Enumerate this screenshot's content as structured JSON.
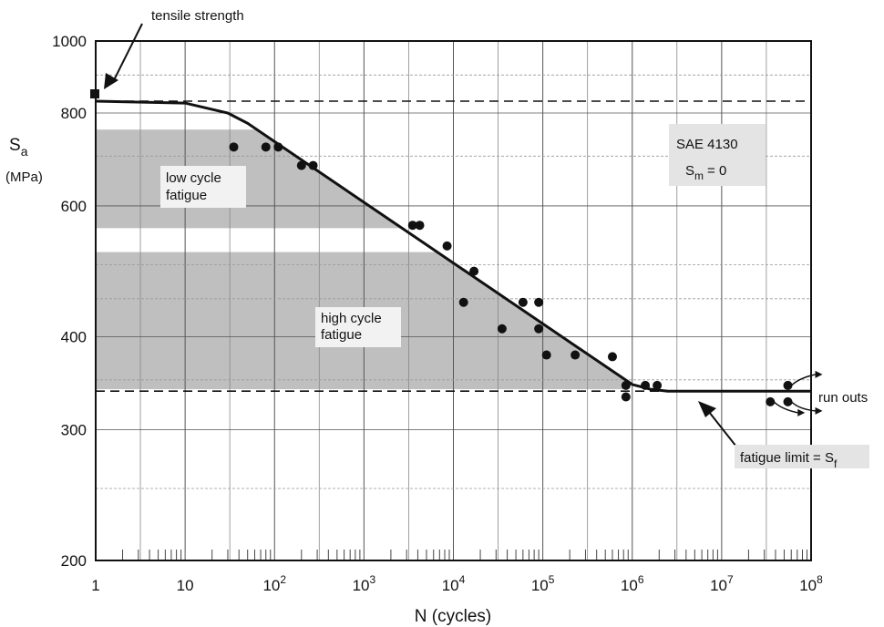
{
  "chart_data": {
    "type": "scatter",
    "x_scale": "log",
    "y_scale": "log",
    "xlabel": "N (cycles)",
    "ylabel_symbol": "S",
    "ylabel_sub": "a",
    "ylabel_unit": "(MPa)",
    "xlim": [
      1,
      100000000
    ],
    "ylim": [
      200,
      1000
    ],
    "grid": true,
    "x_tick_labels": [
      {
        "value": 1,
        "base": "1",
        "exp": ""
      },
      {
        "value": 10,
        "base": "10",
        "exp": ""
      },
      {
        "value": 100,
        "base": "10",
        "exp": "2"
      },
      {
        "value": 1000,
        "base": "10",
        "exp": "3"
      },
      {
        "value": 10000,
        "base": "10",
        "exp": "4"
      },
      {
        "value": 100000,
        "base": "10",
        "exp": "5"
      },
      {
        "value": 1000000,
        "base": "10",
        "exp": "6"
      },
      {
        "value": 10000000,
        "base": "10",
        "exp": "7"
      },
      {
        "value": 100000000,
        "base": "10",
        "exp": "8"
      }
    ],
    "y_tick_labels": [
      {
        "value": 1000,
        "label": "1000"
      },
      {
        "value": 800,
        "label": "800"
      },
      {
        "value": 600,
        "label": "600"
      },
      {
        "value": 400,
        "label": "400"
      },
      {
        "value": 300,
        "label": "300"
      },
      {
        "value": 200,
        "label": "200"
      }
    ],
    "tensile_strength": {
      "x": 1,
      "y": 830
    },
    "fatigue_limit": 338,
    "sn_curve": [
      {
        "x": 1,
        "y": 830
      },
      {
        "x": 10,
        "y": 825
      },
      {
        "x": 30,
        "y": 800
      },
      {
        "x": 50,
        "y": 775
      },
      {
        "x": 1000000,
        "y": 345
      },
      {
        "x": 1600000,
        "y": 340
      },
      {
        "x": 2500000,
        "y": 338
      },
      {
        "x": 100000000,
        "y": 338
      }
    ],
    "regions": [
      {
        "name": "low cycle fatigue",
        "x_range": [
          1,
          3500
        ],
        "y_top": 760,
        "y_bottom": 560
      },
      {
        "name": "high cycle fatigue",
        "x_range": [
          1,
          900000
        ],
        "y_top": 520,
        "y_bottom": 340
      }
    ],
    "points": [
      {
        "x": 35,
        "y": 720
      },
      {
        "x": 80,
        "y": 720
      },
      {
        "x": 110,
        "y": 720
      },
      {
        "x": 200,
        "y": 680
      },
      {
        "x": 270,
        "y": 680
      },
      {
        "x": 3500,
        "y": 565
      },
      {
        "x": 4200,
        "y": 565
      },
      {
        "x": 8500,
        "y": 530
      },
      {
        "x": 17000,
        "y": 490
      },
      {
        "x": 13000,
        "y": 445
      },
      {
        "x": 35000,
        "y": 410
      },
      {
        "x": 60000,
        "y": 445
      },
      {
        "x": 90000,
        "y": 445
      },
      {
        "x": 90000,
        "y": 410
      },
      {
        "x": 110000,
        "y": 378
      },
      {
        "x": 230000,
        "y": 378
      },
      {
        "x": 600000,
        "y": 376
      },
      {
        "x": 850000,
        "y": 344
      },
      {
        "x": 850000,
        "y": 332
      },
      {
        "x": 1400000,
        "y": 344
      },
      {
        "x": 1900000,
        "y": 344
      }
    ],
    "run_outs": [
      {
        "x": 55000000,
        "y": 344
      },
      {
        "x": 35000000,
        "y": 327
      },
      {
        "x": 55000000,
        "y": 327
      }
    ]
  },
  "annotations": {
    "tensile_strength": "tensile strength",
    "low_cycle_line1": "low cycle",
    "low_cycle_line2": "fatigue",
    "high_cycle_line1": "high cycle",
    "high_cycle_line2": "fatigue",
    "material": "SAE 4130",
    "mean_stress_symbol": "S",
    "mean_stress_sub": "m",
    "mean_stress_value": "= 0",
    "run_outs": "run outs",
    "fatigue_limit_text": "fatigue limit = S",
    "fatigue_limit_sub": "f"
  }
}
